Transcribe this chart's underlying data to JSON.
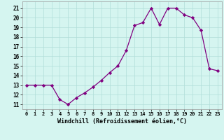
{
  "x": [
    0,
    1,
    2,
    3,
    4,
    5,
    6,
    7,
    8,
    9,
    10,
    11,
    12,
    13,
    14,
    15,
    16,
    17,
    18,
    19,
    20,
    21,
    22,
    23
  ],
  "y": [
    13,
    13,
    13,
    13,
    11.5,
    11,
    11.7,
    12.2,
    12.8,
    13.5,
    14.3,
    15.0,
    16.6,
    19.2,
    19.5,
    21.0,
    19.3,
    21.0,
    21.0,
    20.3,
    20.0,
    18.7,
    14.7,
    14.5
  ],
  "x_ticks": [
    0,
    1,
    2,
    3,
    4,
    5,
    6,
    7,
    8,
    9,
    10,
    11,
    12,
    13,
    14,
    15,
    16,
    17,
    18,
    19,
    20,
    21,
    22,
    23
  ],
  "x_tick_labels": [
    "0",
    "1",
    "2",
    "3",
    "4",
    "5",
    "6",
    "7",
    "8",
    "9",
    "10",
    "11",
    "12",
    "13",
    "14",
    "15",
    "16",
    "17",
    "18",
    "19",
    "20",
    "21",
    "22",
    "23"
  ],
  "y_ticks": [
    11,
    12,
    13,
    14,
    15,
    16,
    17,
    18,
    19,
    20,
    21
  ],
  "ylim": [
    10.5,
    21.7
  ],
  "xlim": [
    -0.5,
    23.5
  ],
  "xlabel": "Windchill (Refroidissement éolien,°C)",
  "line_color": "#800080",
  "marker": "D",
  "marker_size": 2.2,
  "bg_color": "#d5f5f0",
  "grid_color": "#b0ddd8"
}
